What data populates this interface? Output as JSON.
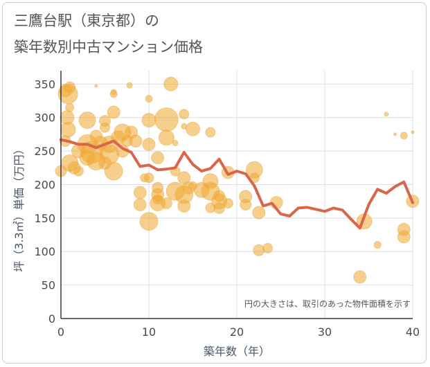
{
  "title_line1": "三鷹台駅（東京都）の",
  "title_line2": "築年数別中古マンション価格",
  "chart_data": {
    "type": "scatter",
    "xlabel": "築年数（年）",
    "ylabel": "坪（3.3㎡）単価（万円）",
    "xlim": [
      0,
      40
    ],
    "ylim": [
      0,
      370
    ],
    "xticks": [
      "0",
      "10",
      "20",
      "30",
      "40"
    ],
    "yticks": [
      "0",
      "50",
      "100",
      "150",
      "200",
      "250",
      "300",
      "350"
    ],
    "annotation": "円の大きさは、取引のあった物件面積を示す",
    "colors": {
      "bubble": "#f0a830",
      "line": "#d9654a",
      "grid": "#d8dde6",
      "frame": "#2f3a4a"
    },
    "grid": true,
    "series": [
      {
        "kind": "bubble",
        "points": [
          {
            "x": 0.5,
            "y": 340,
            "s": 9
          },
          {
            "x": 0.8,
            "y": 335,
            "s": 14
          },
          {
            "x": 1,
            "y": 345,
            "s": 8
          },
          {
            "x": 0.7,
            "y": 300,
            "s": 10
          },
          {
            "x": 1,
            "y": 315,
            "s": 6
          },
          {
            "x": 0.8,
            "y": 282,
            "s": 11
          },
          {
            "x": 0.5,
            "y": 265,
            "s": 8
          },
          {
            "x": 0,
            "y": 220,
            "s": 8
          },
          {
            "x": 1,
            "y": 232,
            "s": 12
          },
          {
            "x": 1.5,
            "y": 225,
            "s": 9
          },
          {
            "x": 2,
            "y": 250,
            "s": 10
          },
          {
            "x": 2,
            "y": 220,
            "s": 7
          },
          {
            "x": 3,
            "y": 296,
            "s": 12
          },
          {
            "x": 3,
            "y": 260,
            "s": 14
          },
          {
            "x": 3,
            "y": 240,
            "s": 11
          },
          {
            "x": 3.5,
            "y": 248,
            "s": 16
          },
          {
            "x": 4,
            "y": 235,
            "s": 13
          },
          {
            "x": 4,
            "y": 272,
            "s": 9
          },
          {
            "x": 4,
            "y": 347,
            "s": 2
          },
          {
            "x": 4.5,
            "y": 262,
            "s": 10
          },
          {
            "x": 5,
            "y": 232,
            "s": 9
          },
          {
            "x": 5,
            "y": 285,
            "s": 7
          },
          {
            "x": 5,
            "y": 295,
            "s": 8
          },
          {
            "x": 5.5,
            "y": 260,
            "s": 12
          },
          {
            "x": 5.5,
            "y": 245,
            "s": 14
          },
          {
            "x": 6,
            "y": 220,
            "s": 13
          },
          {
            "x": 6,
            "y": 308,
            "s": 9
          },
          {
            "x": 6,
            "y": 335,
            "s": 5
          },
          {
            "x": 6,
            "y": 338,
            "s": 4
          },
          {
            "x": 6.5,
            "y": 270,
            "s": 10
          },
          {
            "x": 7,
            "y": 278,
            "s": 12
          },
          {
            "x": 7,
            "y": 250,
            "s": 9
          },
          {
            "x": 7.5,
            "y": 265,
            "s": 8
          },
          {
            "x": 8,
            "y": 278,
            "s": 9
          },
          {
            "x": 7.8,
            "y": 348,
            "s": 4
          },
          {
            "x": 8.5,
            "y": 265,
            "s": 9
          },
          {
            "x": 9,
            "y": 188,
            "s": 9
          },
          {
            "x": 9,
            "y": 170,
            "s": 9
          },
          {
            "x": 9.5,
            "y": 210,
            "s": 6
          },
          {
            "x": 10,
            "y": 260,
            "s": 9
          },
          {
            "x": 10,
            "y": 296,
            "s": 10
          },
          {
            "x": 10,
            "y": 210,
            "s": 7
          },
          {
            "x": 10,
            "y": 145,
            "s": 13
          },
          {
            "x": 10,
            "y": 328,
            "s": 5
          },
          {
            "x": 11,
            "y": 240,
            "s": 9
          },
          {
            "x": 11,
            "y": 195,
            "s": 8
          },
          {
            "x": 11,
            "y": 185,
            "s": 9
          },
          {
            "x": 11,
            "y": 172,
            "s": 11
          },
          {
            "x": 11,
            "y": 178,
            "s": 7
          },
          {
            "x": 12,
            "y": 297,
            "s": 17
          },
          {
            "x": 12,
            "y": 270,
            "s": 11
          },
          {
            "x": 12,
            "y": 172,
            "s": 8
          },
          {
            "x": 12.5,
            "y": 350,
            "s": 10
          },
          {
            "x": 13,
            "y": 190,
            "s": 13
          },
          {
            "x": 13,
            "y": 220,
            "s": 7
          },
          {
            "x": 13,
            "y": 262,
            "s": 4
          },
          {
            "x": 14,
            "y": 210,
            "s": 9
          },
          {
            "x": 14,
            "y": 305,
            "s": 7
          },
          {
            "x": 14,
            "y": 287,
            "s": 4
          },
          {
            "x": 14,
            "y": 185,
            "s": 13
          },
          {
            "x": 14,
            "y": 168,
            "s": 9
          },
          {
            "x": 14.5,
            "y": 195,
            "s": 9
          },
          {
            "x": 15,
            "y": 283,
            "s": 10
          },
          {
            "x": 15,
            "y": 198,
            "s": 6
          },
          {
            "x": 16,
            "y": 192,
            "s": 11
          },
          {
            "x": 17,
            "y": 205,
            "s": 11
          },
          {
            "x": 17,
            "y": 190,
            "s": 13
          },
          {
            "x": 17,
            "y": 278,
            "s": 7
          },
          {
            "x": 17,
            "y": 165,
            "s": 7
          },
          {
            "x": 18,
            "y": 183,
            "s": 8
          },
          {
            "x": 18,
            "y": 175,
            "s": 11
          },
          {
            "x": 18,
            "y": 165,
            "s": 8
          },
          {
            "x": 19,
            "y": 218,
            "s": 9
          },
          {
            "x": 19,
            "y": 172,
            "s": 7
          },
          {
            "x": 21,
            "y": 182,
            "s": 9
          },
          {
            "x": 21,
            "y": 170,
            "s": 8
          },
          {
            "x": 22,
            "y": 222,
            "s": 12
          },
          {
            "x": 22,
            "y": 210,
            "s": 7
          },
          {
            "x": 22.5,
            "y": 158,
            "s": 9
          },
          {
            "x": 22.5,
            "y": 102,
            "s": 8
          },
          {
            "x": 23.5,
            "y": 105,
            "s": 7
          },
          {
            "x": 24.5,
            "y": 173,
            "s": 9
          },
          {
            "x": 34.5,
            "y": 145,
            "s": 11
          },
          {
            "x": 34,
            "y": 62,
            "s": 9
          },
          {
            "x": 36,
            "y": 110,
            "s": 5
          },
          {
            "x": 37,
            "y": 305,
            "s": 3
          },
          {
            "x": 38,
            "y": 275,
            "s": 2
          },
          {
            "x": 39,
            "y": 273,
            "s": 5
          },
          {
            "x": 39,
            "y": 133,
            "s": 9
          },
          {
            "x": 39,
            "y": 122,
            "s": 9
          },
          {
            "x": 40,
            "y": 175,
            "s": 9
          },
          {
            "x": 40,
            "y": 278,
            "s": 2
          }
        ]
      },
      {
        "kind": "line",
        "x": [
          0,
          1,
          2,
          3,
          4,
          5,
          6,
          7,
          8,
          9,
          10,
          11,
          12,
          13,
          14,
          15,
          16,
          17,
          18,
          19,
          20,
          21,
          22,
          23,
          24,
          25,
          26,
          27,
          28,
          29,
          30,
          31,
          32,
          33,
          34,
          35,
          36,
          37,
          38,
          39,
          40
        ],
        "values": [
          267,
          264,
          260,
          260,
          255,
          260,
          265,
          254,
          248,
          227,
          229,
          222,
          223,
          225,
          248,
          230,
          220,
          224,
          238,
          215,
          220,
          216,
          198,
          168,
          172,
          156,
          153,
          165,
          166,
          163,
          160,
          165,
          162,
          148,
          135,
          170,
          193,
          187,
          197,
          204,
          173
        ]
      }
    ]
  }
}
